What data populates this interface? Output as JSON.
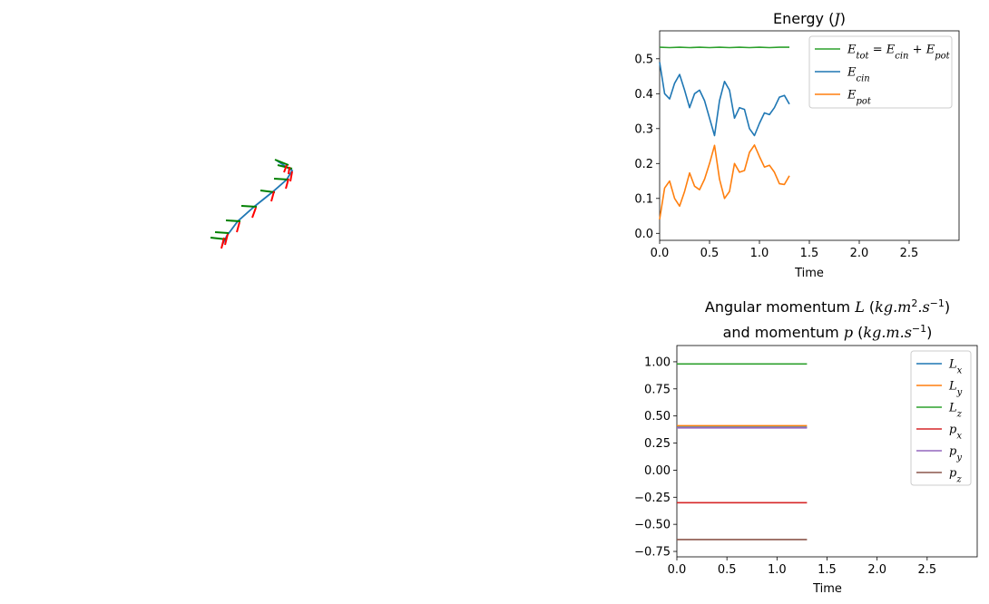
{
  "chart_data": [
    {
      "type": "line",
      "title": "Energy (J)",
      "xlabel": "Time",
      "ylabel": "",
      "xlim": [
        0,
        3.0
      ],
      "ylim": [
        -0.02,
        0.58
      ],
      "x_ticks": [
        "0.0",
        "0.5",
        "1.0",
        "1.5",
        "2.0",
        "2.5"
      ],
      "y_ticks": [
        "0.0",
        "0.1",
        "0.2",
        "0.3",
        "0.4",
        "0.5"
      ],
      "legend_position": "top-right",
      "series": [
        {
          "name": "E_tot = E_cin + E_pot",
          "color": "#2ca02c",
          "x": [
            0.0,
            0.1,
            0.2,
            0.3,
            0.4,
            0.5,
            0.6,
            0.7,
            0.8,
            0.9,
            1.0,
            1.1,
            1.2,
            1.3
          ],
          "y": [
            0.533,
            0.532,
            0.533,
            0.532,
            0.533,
            0.532,
            0.533,
            0.532,
            0.533,
            0.532,
            0.533,
            0.532,
            0.533,
            0.533
          ]
        },
        {
          "name": "E_cin",
          "color": "#1f77b4",
          "x": [
            0.0,
            0.05,
            0.1,
            0.15,
            0.2,
            0.25,
            0.3,
            0.35,
            0.4,
            0.45,
            0.5,
            0.55,
            0.6,
            0.65,
            0.7,
            0.75,
            0.8,
            0.85,
            0.9,
            0.95,
            1.0,
            1.05,
            1.1,
            1.15,
            1.2,
            1.25,
            1.3
          ],
          "y": [
            0.49,
            0.4,
            0.385,
            0.43,
            0.455,
            0.41,
            0.36,
            0.4,
            0.41,
            0.38,
            0.33,
            0.28,
            0.38,
            0.435,
            0.41,
            0.33,
            0.36,
            0.355,
            0.3,
            0.28,
            0.315,
            0.345,
            0.34,
            0.36,
            0.39,
            0.395,
            0.37
          ]
        },
        {
          "name": "E_pot",
          "color": "#ff7f0e",
          "x": [
            0.0,
            0.05,
            0.1,
            0.15,
            0.2,
            0.25,
            0.3,
            0.35,
            0.4,
            0.45,
            0.5,
            0.55,
            0.6,
            0.65,
            0.7,
            0.75,
            0.8,
            0.85,
            0.9,
            0.95,
            1.0,
            1.05,
            1.1,
            1.15,
            1.2,
            1.25,
            1.3
          ],
          "y": [
            0.04,
            0.13,
            0.15,
            0.1,
            0.078,
            0.12,
            0.173,
            0.135,
            0.125,
            0.155,
            0.2,
            0.252,
            0.155,
            0.1,
            0.12,
            0.2,
            0.175,
            0.18,
            0.232,
            0.253,
            0.22,
            0.19,
            0.195,
            0.175,
            0.142,
            0.14,
            0.165
          ]
        }
      ]
    },
    {
      "type": "line",
      "title": "Angular momentum L (kg.m².s⁻¹)",
      "subtitle": "and momentum p (kg.m.s⁻¹)",
      "xlabel": "Time",
      "ylabel": "",
      "xlim": [
        0,
        3.0
      ],
      "ylim": [
        -0.8,
        1.15
      ],
      "x_ticks": [
        "0.0",
        "0.5",
        "1.0",
        "1.5",
        "2.0",
        "2.5"
      ],
      "y_ticks": [
        "1.00",
        "0.75",
        "0.50",
        "0.25",
        "0.00",
        "−0.25",
        "−0.50",
        "−0.75"
      ],
      "legend_position": "top-right",
      "series": [
        {
          "name": "L_x",
          "color": "#1f77b4",
          "x": [
            0.0,
            1.3
          ],
          "y": [
            0.395,
            0.395
          ]
        },
        {
          "name": "L_y",
          "color": "#ff7f0e",
          "x": [
            0.0,
            1.3
          ],
          "y": [
            0.41,
            0.41
          ]
        },
        {
          "name": "L_z",
          "color": "#2ca02c",
          "x": [
            0.0,
            1.3
          ],
          "y": [
            0.98,
            0.98
          ]
        },
        {
          "name": "p_x",
          "color": "#d62728",
          "x": [
            0.0,
            1.3
          ],
          "y": [
            -0.3,
            -0.3
          ]
        },
        {
          "name": "p_y",
          "color": "#9467bd",
          "x": [
            0.0,
            1.3
          ],
          "y": [
            0.39,
            0.39
          ]
        },
        {
          "name": "p_z",
          "color": "#8c564b",
          "x": [
            0.0,
            1.3
          ],
          "y": [
            -0.64,
            -0.64
          ]
        }
      ]
    }
  ],
  "chain_view": {
    "colors": {
      "body": "#1f77b4",
      "axis_a": "#008000",
      "axis_b": "#ff0000"
    }
  }
}
